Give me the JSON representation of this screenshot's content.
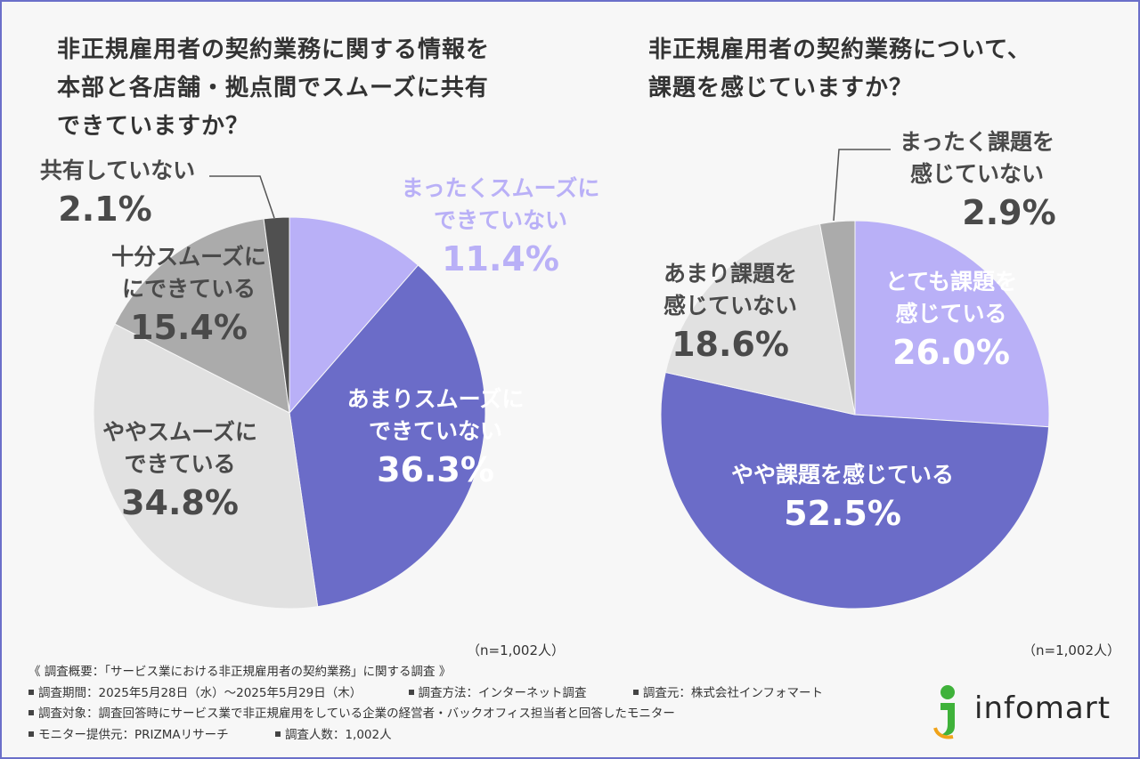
{
  "chart_data": [
    {
      "type": "pie",
      "title": "非正規雇用者の契約業務に関する情報を本部と各店舗・拠点間でスムーズに共有できていますか？",
      "title_lines": [
        "非正規雇用者の契約業務に関する情報を",
        "本部と各店舗・拠点間でスムーズに共有",
        "できていますか？"
      ],
      "n_note": "（n=1,002人）",
      "slices": [
        {
          "label_lines": [
            "まったくスムーズに",
            "できていない"
          ],
          "value": 11.4,
          "value_text": "11.4%",
          "color": "#b9b0f7",
          "text_color": "#b9b0f7"
        },
        {
          "label_lines": [
            "あまりスムーズに",
            "できていない"
          ],
          "value": 36.3,
          "value_text": "36.3%",
          "color": "#6b6cc8",
          "text_color": "#ffffff"
        },
        {
          "label_lines": [
            "ややスムーズに",
            "できている"
          ],
          "value": 34.8,
          "value_text": "34.8%",
          "color": "#e1e1e1",
          "text_color": "#4a4a4a"
        },
        {
          "label_lines": [
            "十分スムーズに",
            "にできている"
          ],
          "value": 15.4,
          "value_text": "15.4%",
          "color": "#ababab",
          "text_color": "#4a4a4a"
        },
        {
          "label_lines": [
            "共有していない"
          ],
          "value": 2.1,
          "value_text": "2.1%",
          "color": "#505050",
          "text_color": "#4a4a4a"
        }
      ]
    },
    {
      "type": "pie",
      "title": "非正規雇用者の契約業務について、課題を感じていますか？",
      "title_lines": [
        "非正規雇用者の契約業務について、",
        "課題を感じていますか？"
      ],
      "n_note": "（n=1,002人）",
      "slices": [
        {
          "label_lines": [
            "とても課題を",
            "感じている"
          ],
          "value": 26.0,
          "value_text": "26.0%",
          "color": "#b9b0f7",
          "text_color": "#ffffff"
        },
        {
          "label_lines": [
            "やや課題を感じている"
          ],
          "value": 52.5,
          "value_text": "52.5%",
          "color": "#6b6cc8",
          "text_color": "#ffffff"
        },
        {
          "label_lines": [
            "あまり課題を",
            "感じていない"
          ],
          "value": 18.6,
          "value_text": "18.6%",
          "color": "#e1e1e1",
          "text_color": "#4a4a4a"
        },
        {
          "label_lines": [
            "まったく課題を",
            "感じていない"
          ],
          "value": 2.9,
          "value_text": "2.9%",
          "color": "#ababab",
          "text_color": "#4a4a4a"
        }
      ]
    }
  ],
  "survey": {
    "overview": "《 調査概要：「サービス業における非正規雇用者の契約業務」に関する調査 》",
    "period": "調査期間：2025年5月28日（水）〜2025年5月29日（木）",
    "method": "調査方法：インターネット調査",
    "source": "調査元：株式会社インフォマート",
    "target": "調査対象：調査回答時にサービス業で非正規雇用をしている企業の経営者・バックオフィス担当者と回答したモニター",
    "provider": "モニター提供元：PRIZMAリサーチ",
    "respondents": "調査人数：1,002人"
  },
  "logo": {
    "text": "infomart",
    "colors": {
      "green": "#3fb23a",
      "orange": "#f0a31a"
    }
  }
}
